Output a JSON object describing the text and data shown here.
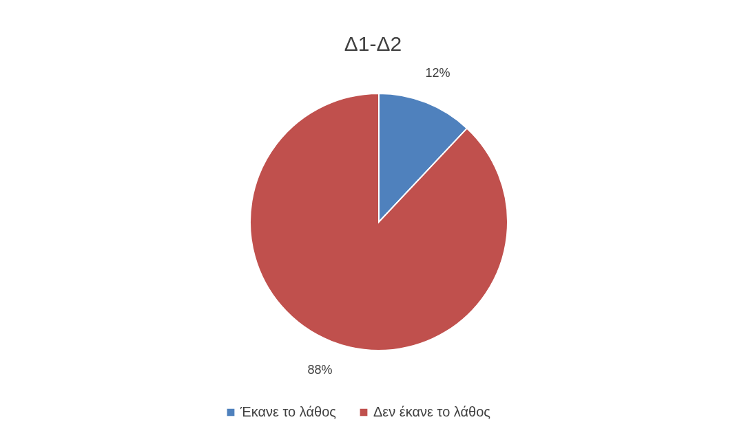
{
  "chart_data": {
    "type": "pie",
    "title": "Δ1-Δ2",
    "categories": [
      "Έκανε το λάθος",
      "Δεν έκανε το λάθος"
    ],
    "values": [
      12,
      88
    ],
    "colors": [
      "#4f81bd",
      "#c0504d"
    ],
    "value_labels": [
      "12%",
      "88%"
    ],
    "legend": "bottom"
  }
}
